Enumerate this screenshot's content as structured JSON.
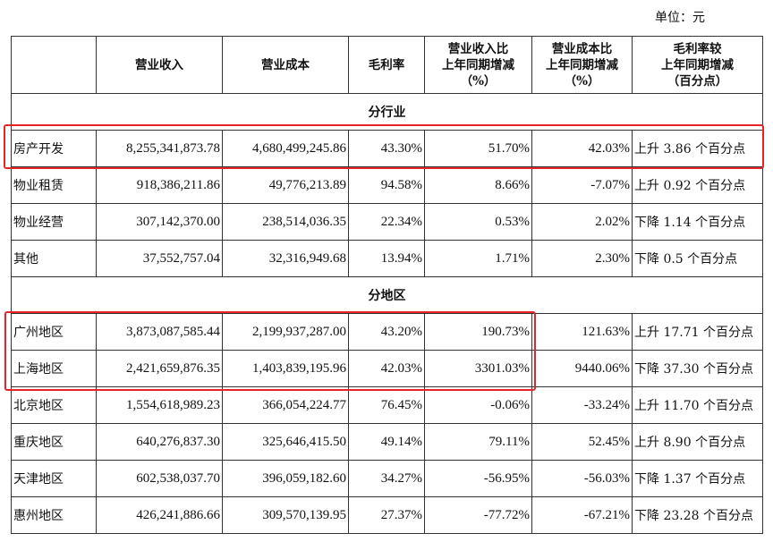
{
  "unit": "单位：元",
  "headers": [
    "",
    "营业收入",
    "营业成本",
    "毛利率",
    "营业收入比\n上年同期增减\n（%）",
    "营业成本比\n上年同期增减\n（%）",
    "毛利率较\n上年同期增减\n（百分点）"
  ],
  "sections": [
    {
      "title": "分行业",
      "rows": [
        [
          "房产开发",
          "8,255,341,873.78",
          "4,680,499,245.86",
          "43.30%",
          "51.70%",
          "42.03%",
          "上升 3.86 个百分点"
        ],
        [
          "物业租赁",
          "918,386,211.86",
          "49,776,213.89",
          "94.58%",
          "8.66%",
          "-7.07%",
          "上升 0.92 个百分点"
        ],
        [
          "物业经营",
          "307,142,370.00",
          "238,514,036.35",
          "22.34%",
          "0.53%",
          "2.02%",
          "下降 1.14 个百分点"
        ],
        [
          "其他",
          "37,552,757.04",
          "32,316,949.68",
          "13.94%",
          "1.71%",
          "2.30%",
          "下降 0.5 个百分点"
        ]
      ]
    },
    {
      "title": "分地区",
      "rows": [
        [
          "广州地区",
          "3,873,087,585.44",
          "2,199,937,287.00",
          "43.20%",
          "190.73%",
          "121.63%",
          "上升 17.71 个百分点"
        ],
        [
          "上海地区",
          "2,421,659,876.35",
          "1,403,839,195.96",
          "42.03%",
          "3301.03%",
          "9440.06%",
          "下降 37.30 个百分点"
        ],
        [
          "北京地区",
          "1,554,618,989.23",
          "366,054,224.77",
          "76.45%",
          "-0.06%",
          "-33.24%",
          "上升 11.70 个百分点"
        ],
        [
          "重庆地区",
          "640,276,837.30",
          "325,646,415.50",
          "49.14%",
          "79.11%",
          "52.45%",
          "上升 8.90 个百分点"
        ],
        [
          "天津地区",
          "602,538,037.70",
          "396,059,182.60",
          "34.27%",
          "-56.95%",
          "-56.03%",
          "下降 1.37 个百分点"
        ],
        [
          "惠州地区",
          "426,241,886.66",
          "309,570,139.95",
          "27.37%",
          "-77.72%",
          "-67.21%",
          "下降 23.28 个百分点"
        ]
      ]
    }
  ],
  "highlight_color": "#e8242a"
}
